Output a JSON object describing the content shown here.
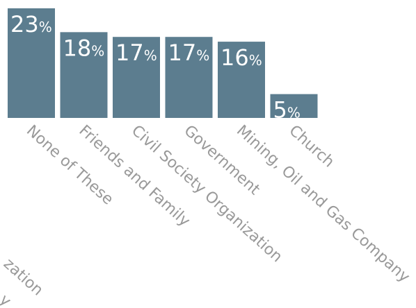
{
  "chart_data": {
    "type": "bar",
    "categories": [
      "None of These",
      "Friends and Family",
      "Civil Society Organization",
      "Government",
      "Mining, Oil and Gas Company",
      "Church"
    ],
    "values": [
      23,
      18,
      17,
      17,
      16,
      5
    ],
    "value_suffix": "%",
    "cropped_labels": [
      "zation",
      "y"
    ],
    "colors": {
      "bar": "#5c7d8f",
      "value_text": "#ffffff",
      "label_text": "#999999"
    },
    "ylim": [
      0,
      23
    ],
    "grid": false,
    "legend": "none"
  }
}
